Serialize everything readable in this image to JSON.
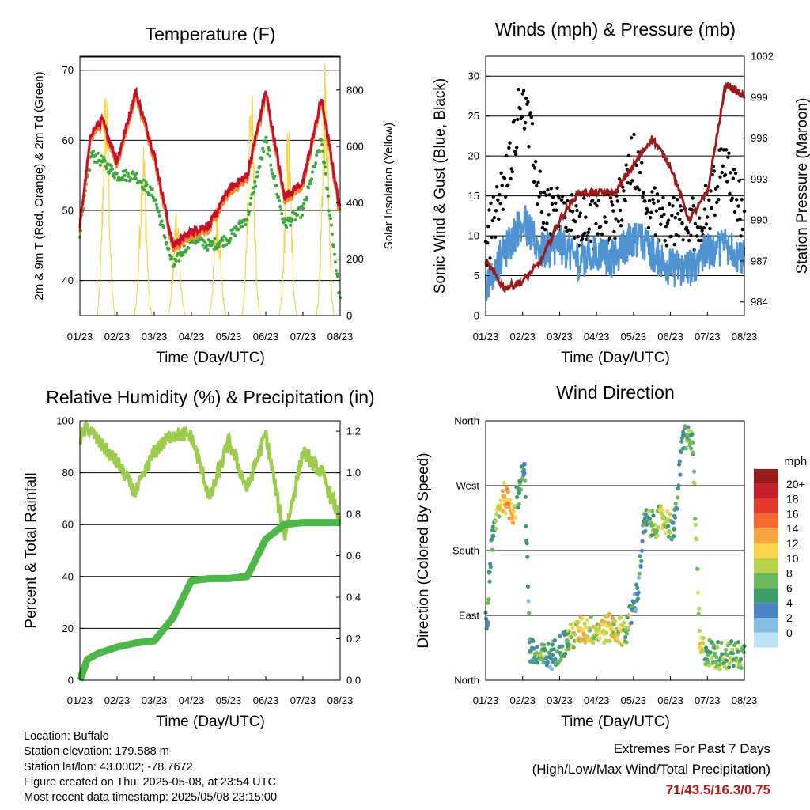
{
  "colors": {
    "temp_2m": "#c8102e",
    "temp_9m": "#f28c28",
    "dewpoint": "#3aa83a",
    "solar": "#f5d547",
    "wind": "#4f93d0",
    "gust": "#000000",
    "pressure": "#9b1b1b",
    "rh": "#9ccc4c",
    "precip": "#4cb848"
  },
  "panels": {
    "temperature": {
      "title": "Temperature (F)",
      "ylabel_left": "2m & 9m T (Red, Orange) & 2m Td (Green)",
      "ylabel_right": "Solar Insolation (Yellow)",
      "xlabel": "Time (Day/UTC)",
      "left_ticks": [
        "40",
        "50",
        "60",
        "70"
      ],
      "right_ticks": [
        "0",
        "200",
        "400",
        "600",
        "800"
      ]
    },
    "winds": {
      "title": "Winds (mph) & Pressure (mb)",
      "ylabel_left": "Sonic Wind & Gust (Blue, Black)",
      "ylabel_right": "Station Pressure (Maroon)",
      "xlabel": "Time (Day/UTC)",
      "left_ticks": [
        "0",
        "5",
        "10",
        "15",
        "20",
        "25",
        "30"
      ],
      "right_ticks": [
        "984",
        "987",
        "990",
        "993",
        "996",
        "999",
        "1002"
      ]
    },
    "humidity": {
      "title": "Relative Humidity (%) & Precipitation (in)",
      "ylabel_left": "Percent & Total Rainfall",
      "xlabel": "Time (Day/UTC)",
      "left_ticks": [
        "0",
        "20",
        "40",
        "60",
        "80",
        "100"
      ],
      "right_ticks": [
        "0.0",
        "0.2",
        "0.4",
        "0.6",
        "0.8",
        "1.0",
        "1.2"
      ]
    },
    "direction": {
      "title": "Wind Direction",
      "ylabel_left": "Direction (Colored By Speed)",
      "xlabel": "Time (Day/UTC)",
      "left_ticks": [
        "North",
        "East",
        "South",
        "West",
        "North"
      ],
      "legend_title": "mph",
      "legend_labels": [
        "20+",
        "18",
        "16",
        "14",
        "12",
        "10",
        "8",
        "6",
        "4",
        "2",
        "0"
      ],
      "legend_colors": [
        "#9b1b1b",
        "#c8202a",
        "#e23b2c",
        "#f26a2c",
        "#f9a33c",
        "#f9d54c",
        "#b8d44c",
        "#6cb85c",
        "#3c9c6c",
        "#4a84c4",
        "#84bce4",
        "#bce4f8"
      ]
    }
  },
  "x_ticks": [
    "01/23",
    "02/23",
    "03/23",
    "04/23",
    "05/23",
    "06/23",
    "07/23",
    "08/23"
  ],
  "info": {
    "location": "Location: Buffalo",
    "elevation": "Station elevation: 179.588 m",
    "latlon": "Station lat/lon: 43.0002; -78.7672",
    "created": "Figure created on Thu, 2025-05-08, at 23:54 UTC",
    "latest": "Most recent data timestamp: 2025/05/08 23:15:00"
  },
  "extremes": {
    "line1": "Extremes For Past 7 Days",
    "line2": "(High/Low/Max Wind/Total Precipitation)",
    "values": "71/43.5/16.3/0.75"
  },
  "chart_data": [
    {
      "type": "line",
      "title": "Temperature (F)",
      "xlabel": "Time (Day/UTC)",
      "ylabel": "2m & 9m T (Red, Orange) & 2m Td (Green)",
      "y2label": "Solar Insolation (Yellow)",
      "x_unit": "days since 01/23",
      "ylim": [
        35,
        72
      ],
      "y2lim": [
        0,
        920
      ],
      "x": [
        0,
        0.3,
        0.6,
        1.0,
        1.5,
        2.0,
        2.5,
        3.0,
        3.5,
        4.0,
        4.5,
        5.0,
        5.5,
        6.0,
        6.5,
        7.0
      ],
      "series": [
        {
          "name": "2m T",
          "color_key": "temp_2m",
          "values": [
            48,
            61,
            63,
            57,
            67,
            58,
            45,
            47,
            48,
            53,
            55,
            67,
            52,
            54,
            66,
            50
          ]
        },
        {
          "name": "2m Td",
          "color_key": "dewpoint",
          "values": [
            47,
            58,
            57,
            55,
            55,
            52,
            42,
            46,
            45,
            46,
            49,
            60,
            48,
            50,
            60,
            37
          ]
        },
        {
          "name": "Solar Insolation",
          "color_key": "solar",
          "axis": "y2",
          "peaks": [
            {
              "x": 0.7,
              "y": 880
            },
            {
              "x": 1.7,
              "y": 660
            },
            {
              "x": 2.6,
              "y": 400
            },
            {
              "x": 3.7,
              "y": 420
            },
            {
              "x": 4.6,
              "y": 900
            },
            {
              "x": 5.6,
              "y": 700
            },
            {
              "x": 6.6,
              "y": 900
            }
          ]
        }
      ]
    },
    {
      "type": "scatter",
      "title": "Winds (mph) & Pressure (mb)",
      "xlabel": "Time (Day/UTC)",
      "ylabel": "Sonic Wind & Gust (Blue, Black)",
      "y2label": "Station Pressure (Maroon)",
      "x_unit": "days since 01/23",
      "ylim": [
        0,
        32.5
      ],
      "y2lim": [
        983,
        1002
      ],
      "x": [
        0,
        0.5,
        1.0,
        1.5,
        2.0,
        2.5,
        3.0,
        3.5,
        4.0,
        4.5,
        5.0,
        5.5,
        6.0,
        6.5,
        7.0
      ],
      "series": [
        {
          "name": "Sonic Wind",
          "color_key": "wind",
          "values": [
            4,
            8,
            12,
            8,
            9,
            7,
            8,
            7,
            10,
            8,
            6,
            6,
            8,
            9,
            7
          ]
        },
        {
          "name": "Gust",
          "color_key": "gust",
          "values": [
            9,
            16,
            28,
            14,
            13,
            11,
            12,
            12,
            20,
            13,
            12,
            11,
            13,
            20,
            11
          ]
        },
        {
          "name": "Station Pressure",
          "color_key": "pressure",
          "axis": "y2",
          "values": [
            987,
            985,
            985.5,
            987,
            990,
            992,
            992,
            992,
            994,
            996,
            994,
            990,
            992,
            1000,
            999
          ]
        }
      ]
    },
    {
      "type": "line",
      "title": "Relative Humidity (%) & Precipitation (in)",
      "xlabel": "Time (Day/UTC)",
      "ylabel": "Percent & Total Rainfall",
      "x_unit": "days since 01/23",
      "ylim": [
        0,
        100
      ],
      "y2lim": [
        0,
        1.25
      ],
      "x": [
        0,
        0.2,
        0.5,
        1.0,
        1.5,
        2.0,
        2.5,
        3.0,
        3.5,
        4.0,
        4.5,
        5.0,
        5.5,
        6.0,
        6.5,
        7.0
      ],
      "series": [
        {
          "name": "Relative Humidity",
          "color_key": "rh",
          "values": [
            93,
            98,
            92,
            84,
            72,
            88,
            95,
            94,
            70,
            92,
            74,
            95,
            55,
            88,
            80,
            62
          ]
        },
        {
          "name": "Total Precipitation",
          "color_key": "precip",
          "axis": "y2",
          "values": [
            0,
            0.1,
            0.13,
            0.16,
            0.18,
            0.19,
            0.3,
            0.48,
            0.49,
            0.49,
            0.5,
            0.68,
            0.75,
            0.76,
            0.76,
            0.76
          ]
        }
      ]
    },
    {
      "type": "scatter",
      "title": "Wind Direction",
      "xlabel": "Time (Day/UTC)",
      "ylabel": "Direction (Colored By Speed)",
      "x_unit": "days since 01/23",
      "y_unit": "degrees (0 = North, 90 = East, 180 = South, 270 = West, 360 = North)",
      "ylim": [
        0,
        360
      ],
      "points": [
        {
          "x": 0.05,
          "y": 80,
          "speed": 4
        },
        {
          "x": 0.1,
          "y": 150,
          "speed": 5
        },
        {
          "x": 0.2,
          "y": 200,
          "speed": 6
        },
        {
          "x": 0.35,
          "y": 240,
          "speed": 10
        },
        {
          "x": 0.5,
          "y": 255,
          "speed": 14
        },
        {
          "x": 0.6,
          "y": 245,
          "speed": 16
        },
        {
          "x": 0.75,
          "y": 235,
          "speed": 12
        },
        {
          "x": 0.9,
          "y": 260,
          "speed": 6
        },
        {
          "x": 1.05,
          "y": 300,
          "speed": 4
        },
        {
          "x": 1.2,
          "y": 40,
          "speed": 6
        },
        {
          "x": 1.5,
          "y": 30,
          "speed": 8
        },
        {
          "x": 1.8,
          "y": 35,
          "speed": 4
        },
        {
          "x": 2.2,
          "y": 55,
          "speed": 8
        },
        {
          "x": 2.6,
          "y": 70,
          "speed": 12
        },
        {
          "x": 3.0,
          "y": 70,
          "speed": 10
        },
        {
          "x": 3.4,
          "y": 72,
          "speed": 12
        },
        {
          "x": 3.8,
          "y": 68,
          "speed": 8
        },
        {
          "x": 4.1,
          "y": 120,
          "speed": 4
        },
        {
          "x": 4.3,
          "y": 220,
          "speed": 6
        },
        {
          "x": 4.5,
          "y": 215,
          "speed": 8
        },
        {
          "x": 4.8,
          "y": 225,
          "speed": 10
        },
        {
          "x": 5.1,
          "y": 210,
          "speed": 6
        },
        {
          "x": 5.35,
          "y": 340,
          "speed": 6
        },
        {
          "x": 5.6,
          "y": 330,
          "speed": 8
        },
        {
          "x": 5.8,
          "y": 45,
          "speed": 12
        },
        {
          "x": 6.0,
          "y": 40,
          "speed": 6
        },
        {
          "x": 6.2,
          "y": 35,
          "speed": 8
        }
      ]
    }
  ]
}
